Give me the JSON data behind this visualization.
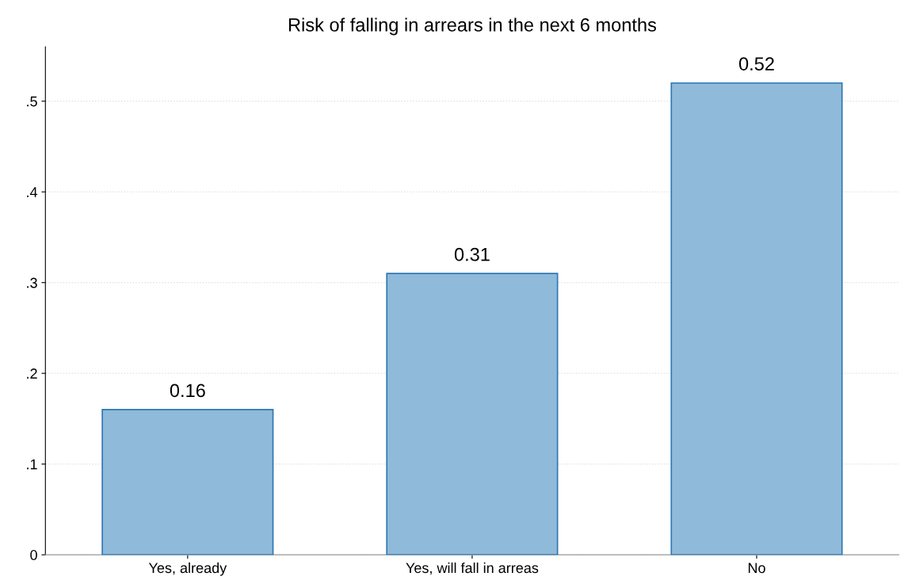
{
  "chart_data": {
    "type": "bar",
    "title": "Risk of falling in arrears in the next 6 months",
    "categories": [
      "Yes, already",
      "Yes, will fall in arreas",
      "No"
    ],
    "values": [
      0.16,
      0.31,
      0.52
    ],
    "color": "#8fbad9",
    "ylim": [
      0,
      0.56
    ],
    "yticks": [
      {
        "value": 0,
        "label": "0"
      },
      {
        "value": 0.1,
        "label": ".1"
      },
      {
        "value": 0.2,
        "label": ".2"
      },
      {
        "value": 0.3,
        "label": ".3"
      },
      {
        "value": 0.4,
        "label": ".4"
      },
      {
        "value": 0.5,
        "label": ".5"
      }
    ],
    "grid": "y",
    "data_labels": true
  }
}
